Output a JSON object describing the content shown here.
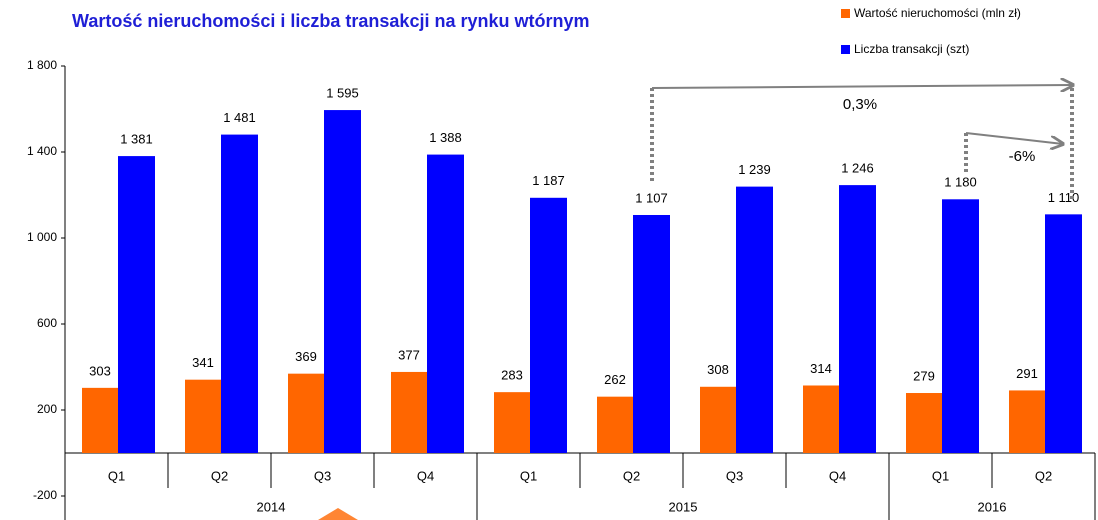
{
  "chart_data": {
    "type": "bar",
    "title": "Wartość nieruchomości i liczba transakcji na rynku wtórnym",
    "categories": [
      "Q1",
      "Q2",
      "Q3",
      "Q4",
      "Q1",
      "Q2",
      "Q3",
      "Q4",
      "Q1",
      "Q2"
    ],
    "groups": [
      {
        "label": "2014",
        "span": 4
      },
      {
        "label": "2015",
        "span": 4
      },
      {
        "label": "2016",
        "span": 2
      }
    ],
    "series": [
      {
        "name": "Wartość nieruchomości (mln zł)",
        "color": "#ff6600",
        "values": [
          303,
          341,
          369,
          377,
          283,
          262,
          308,
          314,
          279,
          291
        ]
      },
      {
        "name": "Liczba transakcji (szt)",
        "color": "#0000ff",
        "values": [
          1381,
          1481,
          1595,
          1388,
          1187,
          1107,
          1239,
          1246,
          1180,
          1110
        ],
        "value_labels": [
          "1 381",
          "1 481",
          "1 595",
          "1 388",
          "1 187",
          "1 107",
          "1 239",
          "1 246",
          "1 180",
          "1 110"
        ]
      }
    ],
    "ylim": [
      -200,
      1800
    ],
    "yticks": [
      -200,
      200,
      600,
      {
        "value": 1000,
        "label": "1 000"
      },
      {
        "value": 1400,
        "label": "1 400"
      },
      {
        "value": 1800,
        "label": "1 800"
      }
    ],
    "annotations": [
      {
        "text": "0,3%"
      },
      {
        "text": "-6%"
      }
    ]
  }
}
